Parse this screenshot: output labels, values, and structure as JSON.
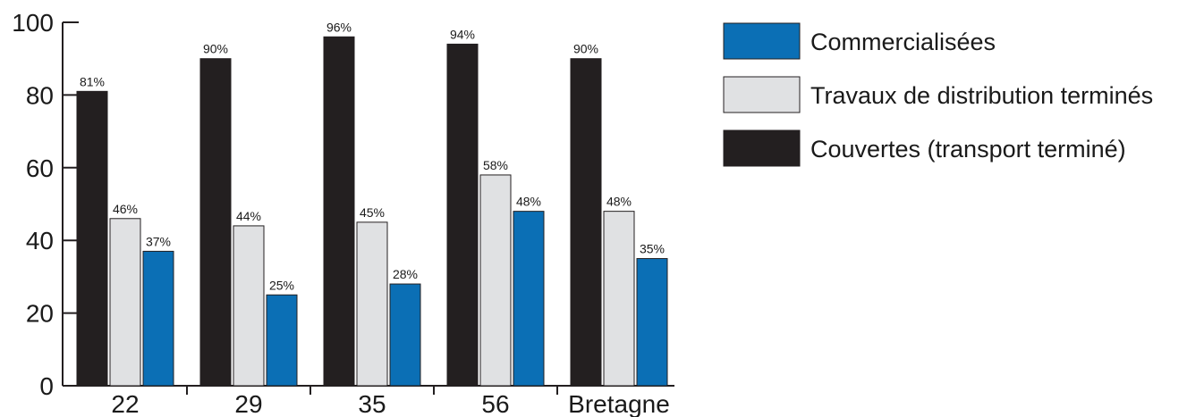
{
  "chart_data": {
    "type": "bar",
    "title": "",
    "xlabel": "",
    "ylabel": "",
    "ylim": [
      0,
      100
    ],
    "yticks": [
      0,
      20,
      40,
      60,
      80,
      100
    ],
    "grid": false,
    "legend_position": "right",
    "categories": [
      "22",
      "29",
      "35",
      "56",
      "Bretagne"
    ],
    "series": [
      {
        "name": "Couvertes (transport terminé)",
        "color": "#231f20",
        "values": [
          81,
          90,
          96,
          94,
          90
        ],
        "labels": [
          "81%",
          "90%",
          "96%",
          "94%",
          "90%"
        ]
      },
      {
        "name": "Travaux de distribution terminés",
        "color": "#e0e1e3",
        "values": [
          46,
          44,
          45,
          58,
          48
        ],
        "labels": [
          "46%",
          "44%",
          "45%",
          "58%",
          "48%"
        ]
      },
      {
        "name": "Commercialisées",
        "color": "#0b6fb5",
        "values": [
          37,
          25,
          28,
          48,
          35
        ],
        "labels": [
          "37%",
          "25%",
          "28%",
          "48%",
          "35%"
        ]
      }
    ],
    "legend_order": [
      2,
      1,
      0
    ]
  }
}
